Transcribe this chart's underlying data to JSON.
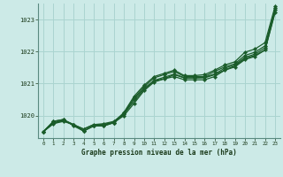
{
  "title": "Graphe pression niveau de la mer (hPa)",
  "background_color": "#cceae7",
  "plot_bg_color": "#cceae7",
  "grid_color": "#aad4d0",
  "line_color": "#1a5c2a",
  "xlim": [
    -0.5,
    23.5
  ],
  "ylim": [
    1019.3,
    1023.5
  ],
  "xticks": [
    0,
    1,
    2,
    3,
    4,
    5,
    6,
    7,
    8,
    9,
    10,
    11,
    12,
    13,
    14,
    15,
    16,
    17,
    18,
    19,
    20,
    21,
    22,
    23
  ],
  "yticks": [
    1020,
    1021,
    1022,
    1023
  ],
  "series": [
    {
      "values": [
        1019.5,
        1019.75,
        1019.85,
        1019.72,
        1019.58,
        1019.72,
        1019.72,
        1019.8,
        1020.05,
        1020.45,
        1020.82,
        1021.08,
        1021.15,
        1021.28,
        1021.18,
        1021.18,
        1021.18,
        1021.28,
        1021.42,
        1021.55,
        1021.78,
        1021.88,
        1022.05,
        1023.28
      ],
      "marker": false,
      "lw": 1.0
    },
    {
      "values": [
        1019.5,
        1019.82,
        1019.88,
        1019.68,
        1019.52,
        1019.68,
        1019.68,
        1019.78,
        1020.05,
        1020.55,
        1020.9,
        1021.18,
        1021.28,
        1021.38,
        1021.22,
        1021.22,
        1021.22,
        1021.38,
        1021.52,
        1021.62,
        1021.88,
        1021.98,
        1022.18,
        1023.35
      ],
      "marker": true,
      "lw": 0.9
    },
    {
      "values": [
        1019.5,
        1019.82,
        1019.88,
        1019.72,
        1019.52,
        1019.68,
        1019.72,
        1019.78,
        1020.1,
        1020.6,
        1020.95,
        1021.22,
        1021.32,
        1021.42,
        1021.25,
        1021.25,
        1021.28,
        1021.42,
        1021.58,
        1021.68,
        1021.98,
        1022.08,
        1022.28,
        1023.42
      ],
      "marker": true,
      "lw": 0.9
    },
    {
      "values": [
        1019.5,
        1019.78,
        1019.85,
        1019.72,
        1019.58,
        1019.72,
        1019.75,
        1019.82,
        1020.08,
        1020.52,
        1020.85,
        1021.1,
        1021.2,
        1021.3,
        1021.18,
        1021.18,
        1021.2,
        1021.3,
        1021.48,
        1021.58,
        1021.82,
        1021.92,
        1022.12,
        1023.3
      ],
      "marker": true,
      "lw": 0.9
    },
    {
      "values": [
        1019.5,
        1019.75,
        1019.82,
        1019.72,
        1019.52,
        1019.68,
        1019.68,
        1019.78,
        1020.0,
        1020.38,
        1020.78,
        1021.05,
        1021.15,
        1021.22,
        1021.12,
        1021.12,
        1021.12,
        1021.22,
        1021.42,
        1021.52,
        1021.75,
        1021.85,
        1022.05,
        1023.22
      ],
      "marker": true,
      "lw": 0.9
    }
  ]
}
